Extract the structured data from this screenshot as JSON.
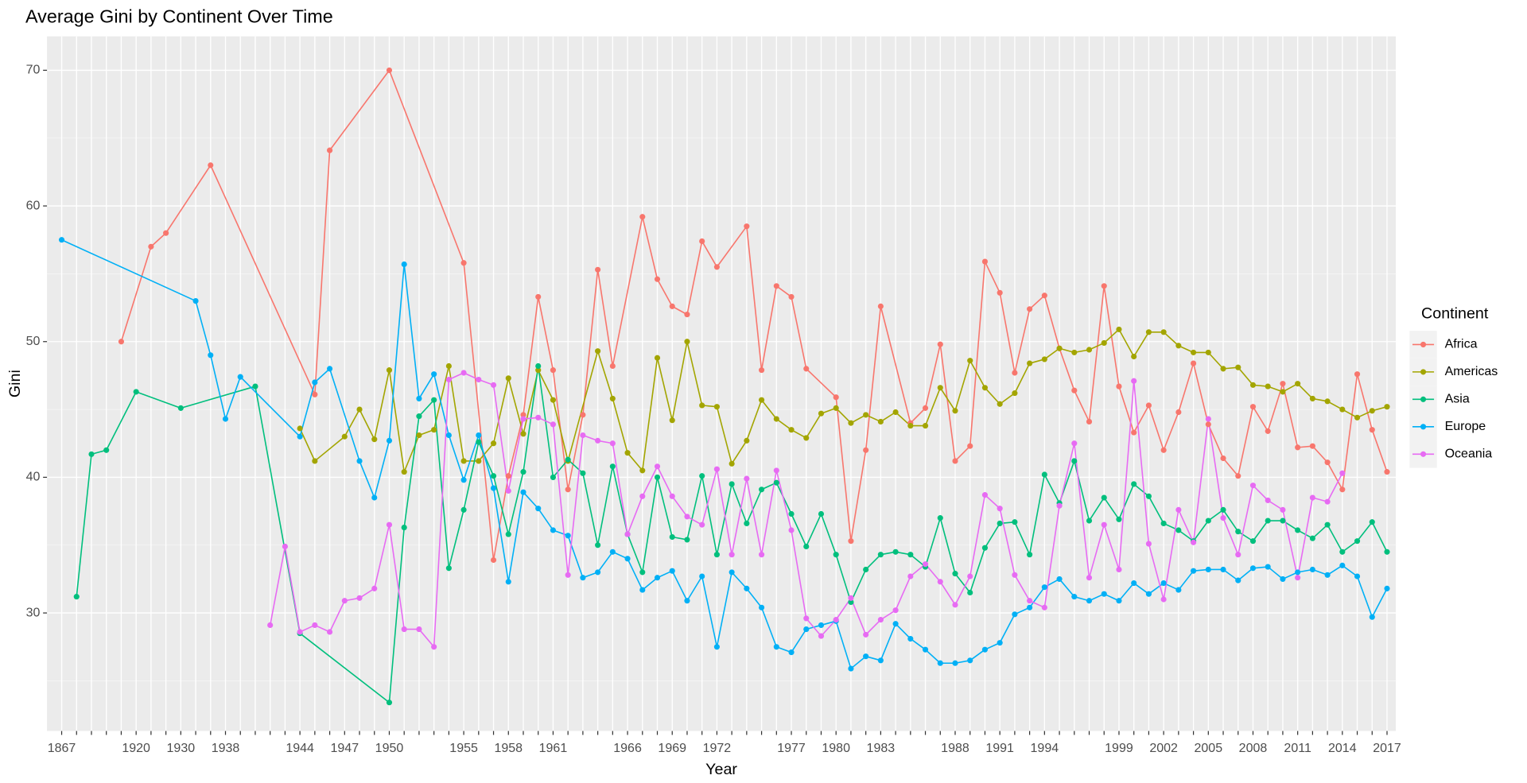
{
  "chart_data": {
    "type": "line",
    "title": "Average Gini by Continent Over Time",
    "x_label": "Year",
    "y_label": "Gini",
    "legend_title": "Continent",
    "legend_position": "right",
    "grid": true,
    "categories": [
      "1867",
      null,
      null,
      null,
      null,
      "1920",
      null,
      null,
      "1930",
      null,
      null,
      "1938",
      null,
      null,
      null,
      null,
      "1944",
      null,
      null,
      "1947",
      null,
      null,
      "1950",
      null,
      null,
      null,
      null,
      "1955",
      null,
      null,
      "1958",
      null,
      null,
      "1961",
      null,
      null,
      null,
      null,
      "1966",
      null,
      null,
      "1969",
      null,
      null,
      "1972",
      null,
      null,
      null,
      null,
      "1977",
      null,
      null,
      "1980",
      null,
      null,
      "1983",
      null,
      null,
      null,
      null,
      "1988",
      null,
      null,
      "1991",
      null,
      null,
      "1994",
      null,
      null,
      null,
      null,
      "1999",
      null,
      null,
      "2002",
      null,
      null,
      "2005",
      null,
      null,
      "2008",
      null,
      null,
      "2011",
      null,
      null,
      "2014",
      null,
      null,
      "2017"
    ],
    "ylim": [
      21.3,
      72.5
    ],
    "yticks": [
      30,
      40,
      50,
      60,
      70
    ],
    "series": [
      {
        "name": "Africa",
        "color": "#F8766D",
        "values": [
          null,
          null,
          null,
          null,
          50.0,
          null,
          57.0,
          58.0,
          null,
          null,
          63.0,
          null,
          null,
          null,
          null,
          null,
          null,
          46.1,
          64.1,
          null,
          null,
          null,
          70.0,
          null,
          null,
          null,
          null,
          55.8,
          null,
          33.9,
          40.1,
          44.6,
          53.3,
          47.9,
          39.1,
          44.6,
          55.3,
          48.2,
          null,
          59.2,
          54.6,
          52.6,
          52.0,
          57.4,
          55.5,
          null,
          58.5,
          47.9,
          54.1,
          53.3,
          48.0,
          null,
          45.9,
          35.3,
          42.0,
          52.6,
          null,
          44.0,
          45.1,
          49.8,
          41.2,
          42.3,
          55.9,
          53.6,
          47.7,
          52.4,
          53.4,
          49.5,
          46.4,
          44.1,
          54.1,
          46.7,
          43.3,
          45.3,
          42.0,
          44.8,
          48.4,
          43.9,
          41.4,
          40.1,
          45.2,
          43.4,
          46.9,
          42.2,
          42.3,
          41.1,
          39.1,
          47.6,
          43.5,
          40.4
        ]
      },
      {
        "name": "Americas",
        "color": "#A3A500",
        "values": [
          null,
          null,
          null,
          null,
          null,
          null,
          null,
          null,
          null,
          null,
          null,
          null,
          null,
          null,
          null,
          null,
          43.6,
          41.2,
          null,
          43.0,
          45.0,
          42.8,
          47.9,
          40.4,
          43.1,
          43.5,
          48.2,
          41.2,
          41.2,
          42.5,
          47.3,
          43.2,
          47.9,
          45.7,
          41.2,
          null,
          49.3,
          45.8,
          41.8,
          40.5,
          48.8,
          44.2,
          50.0,
          45.3,
          45.2,
          41.0,
          42.7,
          45.7,
          44.3,
          43.5,
          42.9,
          44.7,
          45.1,
          44.0,
          44.6,
          44.1,
          44.8,
          43.8,
          43.8,
          46.6,
          44.9,
          48.6,
          46.6,
          45.4,
          46.2,
          48.4,
          48.7,
          49.5,
          49.2,
          49.4,
          49.9,
          50.9,
          48.9,
          50.7,
          50.7,
          49.7,
          49.2,
          49.2,
          48.0,
          48.1,
          46.8,
          46.7,
          46.3,
          46.9,
          45.8,
          45.6,
          45.0,
          44.4,
          44.9,
          45.2
        ]
      },
      {
        "name": "Asia",
        "color": "#00BF7D",
        "values": [
          null,
          31.2,
          41.7,
          42.0,
          null,
          46.3,
          null,
          null,
          45.1,
          null,
          null,
          null,
          null,
          46.7,
          null,
          null,
          28.5,
          null,
          null,
          null,
          null,
          null,
          23.4,
          36.3,
          44.5,
          45.7,
          33.3,
          37.6,
          42.6,
          40.1,
          35.8,
          40.4,
          48.2,
          40.0,
          41.3,
          40.3,
          35.0,
          40.8,
          35.8,
          33.0,
          40.0,
          35.6,
          35.4,
          40.1,
          34.3,
          39.5,
          36.6,
          39.1,
          39.6,
          37.3,
          34.9,
          37.3,
          34.3,
          30.8,
          33.2,
          34.3,
          34.5,
          34.3,
          33.4,
          37.0,
          32.9,
          31.5,
          34.8,
          36.6,
          36.7,
          34.3,
          40.2,
          38.1,
          41.2,
          36.8,
          38.5,
          36.9,
          39.5,
          38.6,
          36.6,
          36.1,
          35.3,
          36.8,
          37.6,
          36.0,
          35.3,
          36.8,
          36.8,
          36.1,
          35.5,
          36.5,
          34.5,
          35.3,
          36.7,
          34.5
        ]
      },
      {
        "name": "Europe",
        "color": "#00B0F6",
        "values": [
          57.5,
          null,
          null,
          null,
          null,
          null,
          null,
          null,
          null,
          53.0,
          49.0,
          44.3,
          47.4,
          null,
          null,
          null,
          43.0,
          47.0,
          48.0,
          null,
          41.2,
          38.5,
          42.7,
          55.7,
          45.8,
          47.6,
          43.1,
          39.8,
          43.1,
          39.2,
          32.3,
          38.9,
          37.7,
          36.1,
          35.7,
          32.6,
          33.0,
          34.5,
          34.0,
          31.7,
          32.6,
          33.1,
          30.9,
          32.7,
          27.5,
          33.0,
          31.8,
          30.4,
          27.5,
          27.1,
          28.8,
          29.1,
          29.4,
          25.9,
          26.8,
          26.5,
          29.2,
          28.1,
          27.3,
          26.3,
          26.3,
          26.5,
          27.3,
          27.8,
          29.9,
          30.4,
          31.9,
          32.5,
          31.2,
          30.9,
          31.4,
          30.9,
          32.2,
          31.4,
          32.2,
          31.7,
          33.1,
          33.2,
          33.2,
          32.4,
          33.3,
          33.4,
          32.5,
          33.0,
          33.2,
          32.8,
          33.5,
          32.7,
          29.7,
          31.8
        ]
      },
      {
        "name": "Oceania",
        "color": "#E76BF3",
        "values": [
          null,
          null,
          null,
          null,
          null,
          null,
          null,
          null,
          null,
          null,
          null,
          null,
          null,
          null,
          29.1,
          34.9,
          28.6,
          29.1,
          28.6,
          30.9,
          31.1,
          31.8,
          36.5,
          28.8,
          28.8,
          27.5,
          47.2,
          47.7,
          47.2,
          46.8,
          39.0,
          44.3,
          44.4,
          43.9,
          32.8,
          43.1,
          42.7,
          42.5,
          35.8,
          38.6,
          40.8,
          38.6,
          37.1,
          36.5,
          40.6,
          34.3,
          39.9,
          34.3,
          40.5,
          36.1,
          29.6,
          28.3,
          29.5,
          31.1,
          28.4,
          29.5,
          30.2,
          32.7,
          33.6,
          32.3,
          30.6,
          32.7,
          38.7,
          37.7,
          32.8,
          30.9,
          30.4,
          37.9,
          42.5,
          32.6,
          36.5,
          33.2,
          47.1,
          35.1,
          31.0,
          37.6,
          35.2,
          44.3,
          37.0,
          34.3,
          39.4,
          38.3,
          37.6,
          32.6,
          38.5,
          38.2,
          40.3,
          null,
          null,
          null
        ]
      }
    ]
  }
}
